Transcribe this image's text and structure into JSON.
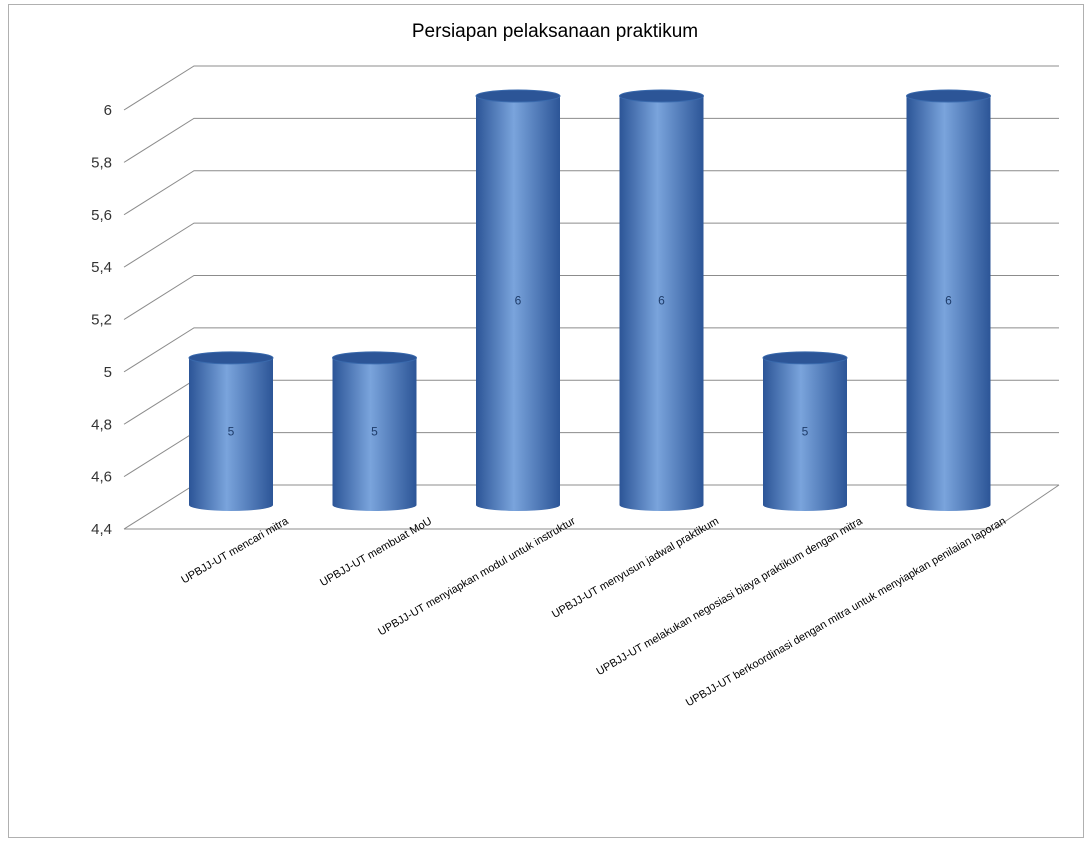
{
  "chart_data": {
    "type": "bar",
    "title": "Persiapan pelaksanaan praktikum",
    "xlabel": "",
    "ylabel": "",
    "categories": [
      "UPBJJ-UT mencari mitra",
      "UPBJJ-UT membuat MoU",
      "UPBJJ-UT menyiapkan modul untuk instruktur",
      "UPBJJ-UT menyusun jadwal praktikum",
      "UPBJJ-UT melakukan negosiasi biaya praktikum dengan mitra",
      "UPBJJ-UT berkoordinasi dengan mitra untuk menyiapkan penilaian laporan"
    ],
    "values": [
      5,
      5,
      6,
      6,
      5,
      6
    ],
    "data_labels": [
      "5",
      "5",
      "6",
      "6",
      "5",
      "6"
    ],
    "ylim": [
      4.4,
      6
    ],
    "yticks": [
      "4,4",
      "4,6",
      "4,8",
      "5",
      "5,2",
      "5,4",
      "5,6",
      "5,8",
      "6"
    ],
    "grid": true,
    "legend": "none",
    "style": "3d-cylinder",
    "bar_color": "#4f81bd",
    "bar_dark": "#2c5597",
    "bar_light": "#7aa4dc",
    "grid_color": "#8c8c8c"
  }
}
